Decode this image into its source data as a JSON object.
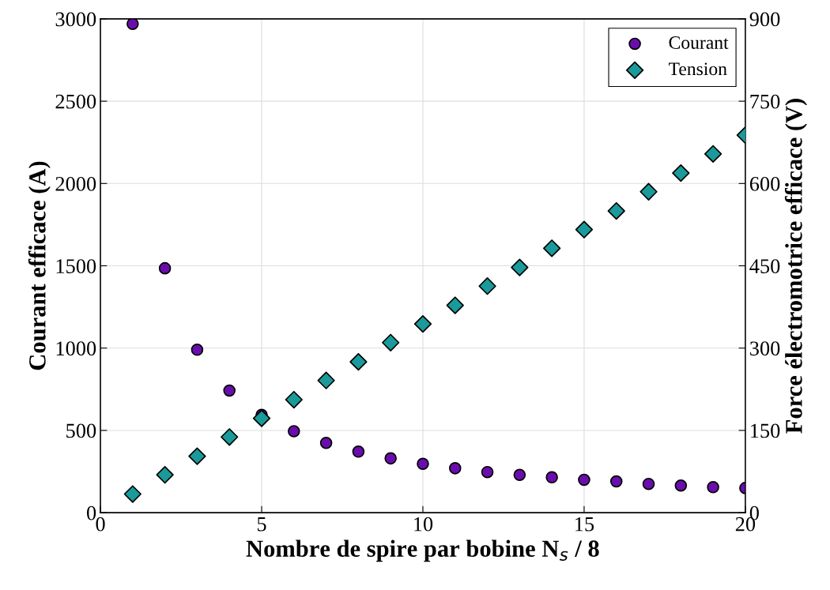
{
  "chart_data": {
    "type": "scatter",
    "xlabel": "Nombre de spire par bobine N$_{s}$ / 8",
    "ylabel": "Courant efficace (A)",
    "y2label": "Force électromotrice efficace (V)",
    "x": [
      1,
      2,
      3,
      4,
      5,
      6,
      7,
      8,
      9,
      10,
      11,
      12,
      13,
      14,
      15,
      16,
      17,
      18,
      19,
      20
    ],
    "series": [
      {
        "name": "Courant",
        "color": "#6a0dad",
        "marker": "circle",
        "values": [
          2970,
          1485,
          990,
          742,
          594,
          495,
          424,
          371,
          330,
          297,
          270,
          247,
          230,
          215,
          200,
          190,
          175,
          165,
          155,
          150
        ]
      },
      {
        "name": "Tension",
        "color": "#1a9a9a",
        "marker": "diamond",
        "axis": "y2",
        "values": [
          34,
          69,
          103,
          138,
          172,
          206,
          241,
          275,
          310,
          344,
          378,
          413,
          447,
          482,
          516,
          550,
          585,
          619,
          654,
          688
        ]
      }
    ],
    "xlim": [
      0,
      20
    ],
    "xticks": [
      0,
      5,
      10,
      15,
      20
    ],
    "ylim": [
      0,
      3000
    ],
    "yticks": [
      0,
      500,
      1000,
      1500,
      2000,
      2500,
      3000
    ],
    "y2lim": [
      0,
      900
    ],
    "y2ticks": [
      0,
      150,
      300,
      450,
      600,
      750,
      900
    ],
    "grid": true,
    "legend": "top right"
  }
}
